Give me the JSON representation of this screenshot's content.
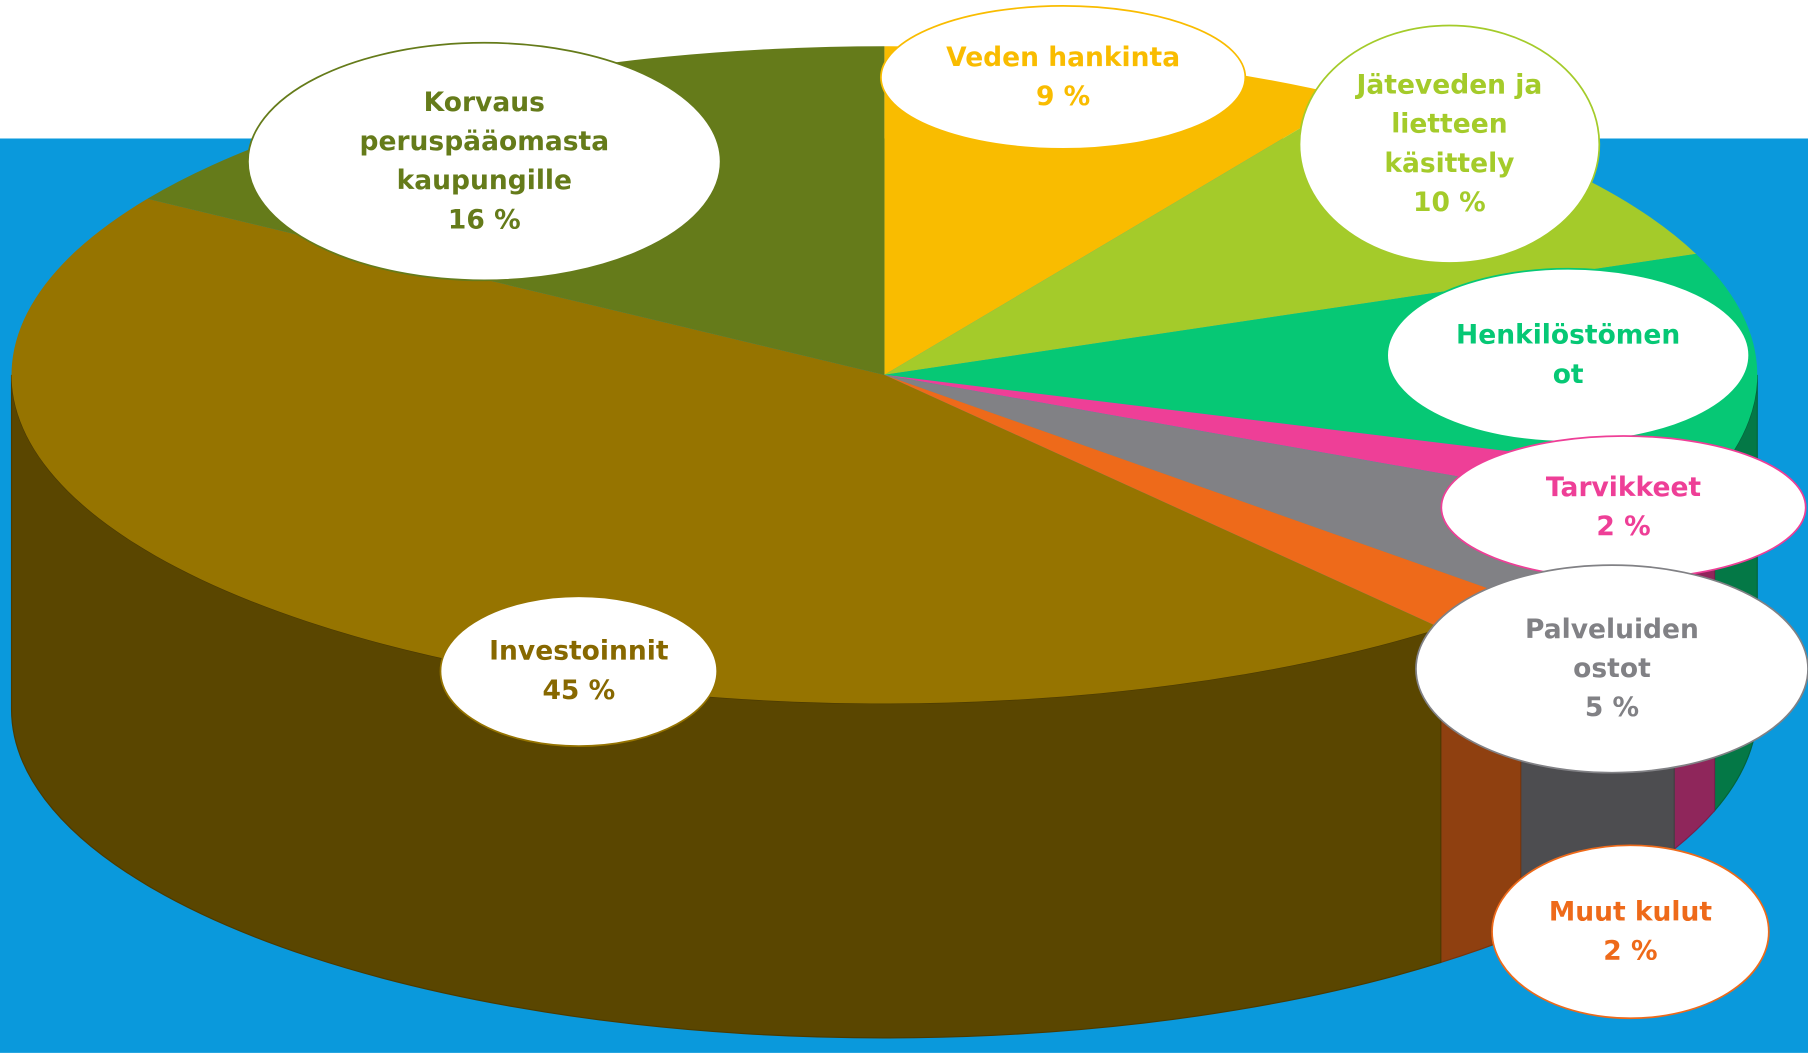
{
  "chart_data": {
    "type": "pie3d",
    "categories": [
      "Veden hankinta",
      "Jäteveden ja\nlietteen\nkäsittely",
      "Henkilöstömen\not",
      "Tarvikkeet",
      "Palveluiden\nostot",
      "Muut kulut",
      "Investoinnit",
      "Korvaus\nperuspääomasta\nkaupungille"
    ],
    "values": [
      9,
      10,
      11,
      2,
      5,
      2,
      45,
      16
    ],
    "value_labels": [
      "9 %",
      "10 %",
      null,
      "2 %",
      "5 %",
      "2 %",
      "45 %",
      "16 %"
    ],
    "colors": [
      "#f9bc00",
      "#a4cb2a",
      "#06c875",
      "#ee3f97",
      "#818185",
      "#ee6a1a",
      "#967400",
      "#657b1a"
    ]
  }
}
